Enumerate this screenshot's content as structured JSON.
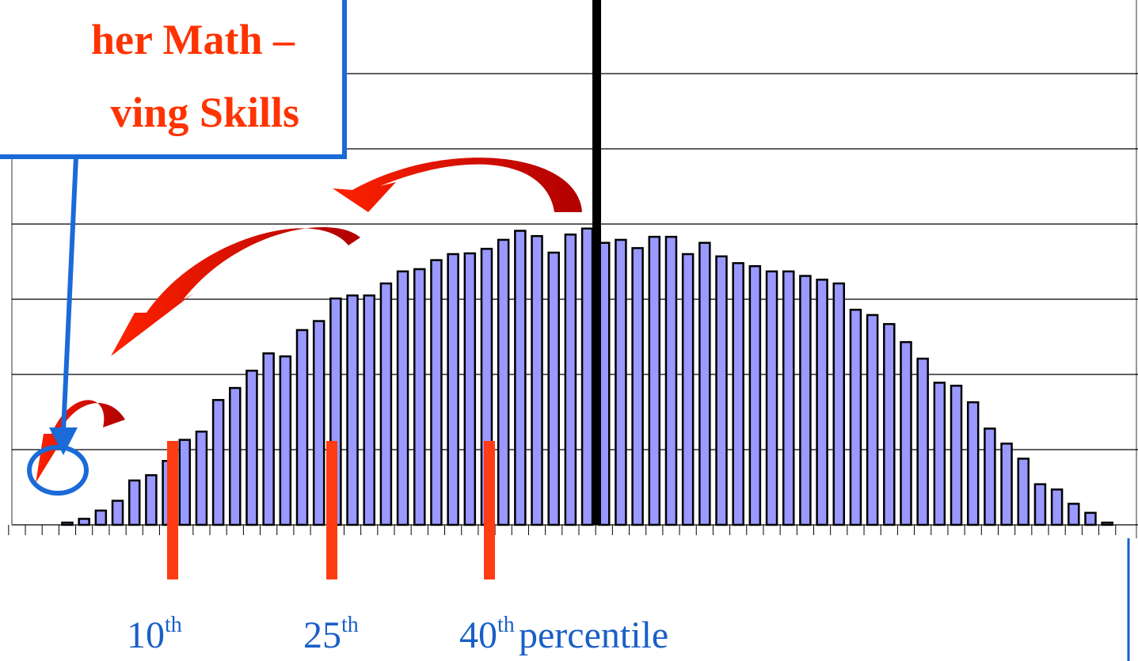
{
  "chart_data": {
    "type": "bar",
    "title_lines": [
      "her Math –",
      "ving Skills"
    ],
    "values": [
      0.03,
      0.08,
      0.19,
      0.32,
      0.59,
      0.66,
      0.85,
      1.13,
      1.24,
      1.66,
      1.82,
      2.05,
      2.28,
      2.24,
      2.59,
      2.71,
      3.01,
      3.05,
      3.05,
      3.21,
      3.37,
      3.4,
      3.52,
      3.6,
      3.61,
      3.67,
      3.79,
      3.91,
      3.84,
      3.62,
      3.86,
      3.94,
      3.75,
      3.79,
      3.68,
      3.83,
      3.83,
      3.6,
      3.75,
      3.57,
      3.48,
      3.44,
      3.37,
      3.37,
      3.31,
      3.26,
      3.21,
      2.86,
      2.79,
      2.67,
      2.43,
      2.21,
      1.89,
      1.85,
      1.63,
      1.28,
      1.08,
      0.88,
      0.54,
      0.47,
      0.28,
      0.16,
      0.03
    ],
    "color": "#9999ff",
    "ylim": [
      0,
      7
    ],
    "yticks": [
      0,
      1,
      2,
      3,
      4,
      5,
      6,
      7
    ],
    "grid": true,
    "percentile_labels": [
      {
        "number": "10",
        "suffix": "th"
      },
      {
        "number": "25",
        "suffix": "th"
      },
      {
        "number": "40",
        "suffix": "th"
      }
    ],
    "axis_label": "percentile"
  }
}
